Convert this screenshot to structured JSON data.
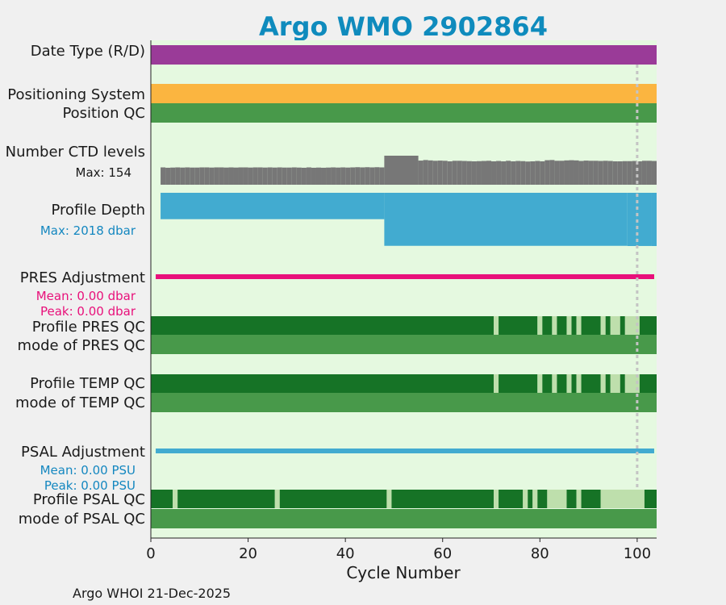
{
  "chart_data": {
    "type": "bar",
    "title": "Argo WMO 2902864",
    "xlabel": "Cycle Number",
    "xlim": [
      0,
      104
    ],
    "xticks": [
      0,
      20,
      40,
      60,
      80,
      100
    ],
    "footer": "Argo WHOI 21-Dec-2025",
    "last_cycle_marker": 100,
    "colors": {
      "plot_bg": "#e5f9e0",
      "page_bg": "#f0f0f0",
      "title": "#0f8bbd",
      "date_type": "#9a3b98",
      "positioning": "#fbb540",
      "qc_good": "#48994a",
      "qc_dark": "#167326",
      "qc_light": "#bedfac",
      "ctd": "#777777",
      "depth": "#42abd0",
      "pres_adj": "#e8107a",
      "psal_adj": "#42abd0",
      "annot_depth": "#1487c0",
      "annot_pres": "#e8107a",
      "annot_psal": "#1487c0"
    },
    "rows": {
      "date_type": {
        "label": "Date Type (R/D)",
        "x": [
          0,
          104
        ]
      },
      "positioning_system": {
        "label": "Positioning System",
        "x": [
          0,
          104
        ]
      },
      "position_qc": {
        "label": "Position QC",
        "x": [
          0,
          104
        ]
      },
      "ctd_levels": {
        "label": "Number CTD levels",
        "max_label": "Max: 154",
        "max": 154,
        "values": [
          [
            2,
            3,
            92
          ],
          [
            3,
            4,
            90
          ],
          [
            4,
            5,
            91
          ],
          [
            5,
            6,
            92
          ],
          [
            6,
            7,
            91
          ],
          [
            7,
            8,
            92
          ],
          [
            8,
            9,
            91
          ],
          [
            9,
            10,
            91
          ],
          [
            10,
            11,
            92
          ],
          [
            11,
            12,
            92
          ],
          [
            12,
            13,
            91
          ],
          [
            13,
            14,
            92
          ],
          [
            14,
            15,
            92
          ],
          [
            15,
            16,
            91
          ],
          [
            16,
            17,
            92
          ],
          [
            17,
            18,
            91
          ],
          [
            18,
            19,
            92
          ],
          [
            19,
            20,
            92
          ],
          [
            20,
            21,
            91
          ],
          [
            21,
            22,
            92
          ],
          [
            22,
            23,
            92
          ],
          [
            23,
            24,
            91
          ],
          [
            24,
            25,
            92
          ],
          [
            25,
            26,
            91
          ],
          [
            26,
            27,
            92
          ],
          [
            27,
            28,
            91
          ],
          [
            28,
            29,
            91
          ],
          [
            29,
            30,
            92
          ],
          [
            30,
            31,
            91
          ],
          [
            31,
            32,
            90
          ],
          [
            32,
            33,
            92
          ],
          [
            33,
            34,
            90
          ],
          [
            34,
            35,
            91
          ],
          [
            35,
            36,
            90
          ],
          [
            36,
            37,
            91
          ],
          [
            37,
            38,
            92
          ],
          [
            38,
            39,
            91
          ],
          [
            39,
            40,
            92
          ],
          [
            40,
            41,
            91
          ],
          [
            41,
            42,
            92
          ],
          [
            42,
            43,
            93
          ],
          [
            43,
            44,
            92
          ],
          [
            44,
            45,
            93
          ],
          [
            45,
            46,
            92
          ],
          [
            46,
            47,
            93
          ],
          [
            47,
            48,
            92
          ],
          [
            48,
            55,
            154
          ],
          [
            55,
            56,
            128
          ],
          [
            56,
            57,
            131
          ],
          [
            57,
            58,
            129
          ],
          [
            58,
            59,
            127
          ],
          [
            59,
            60,
            128
          ],
          [
            60,
            61,
            127
          ],
          [
            61,
            62,
            124
          ],
          [
            62,
            63,
            127
          ],
          [
            63,
            64,
            127
          ],
          [
            64,
            65,
            126
          ],
          [
            65,
            66,
            125
          ],
          [
            66,
            67,
            124
          ],
          [
            67,
            68,
            125
          ],
          [
            68,
            69,
            126
          ],
          [
            69,
            70,
            127
          ],
          [
            70,
            71,
            124
          ],
          [
            71,
            72,
            126
          ],
          [
            72,
            73,
            124
          ],
          [
            73,
            74,
            127
          ],
          [
            74,
            75,
            124
          ],
          [
            75,
            76,
            126
          ],
          [
            76,
            77,
            125
          ],
          [
            77,
            78,
            123
          ],
          [
            78,
            79,
            124
          ],
          [
            79,
            80,
            126
          ],
          [
            80,
            81,
            124
          ],
          [
            81,
            82,
            130
          ],
          [
            82,
            83,
            131
          ],
          [
            83,
            84,
            127
          ],
          [
            84,
            85,
            127
          ],
          [
            85,
            86,
            129
          ],
          [
            86,
            87,
            130
          ],
          [
            87,
            88,
            129
          ],
          [
            88,
            89,
            126
          ],
          [
            89,
            90,
            128
          ],
          [
            90,
            91,
            127
          ],
          [
            91,
            92,
            127
          ],
          [
            92,
            93,
            126
          ],
          [
            93,
            94,
            127
          ],
          [
            94,
            95,
            126
          ],
          [
            95,
            96,
            124
          ],
          [
            96,
            97,
            124
          ],
          [
            97,
            98,
            125
          ],
          [
            98,
            99,
            125
          ],
          [
            99,
            100,
            126
          ],
          [
            100,
            101,
            124
          ],
          [
            101,
            102,
            127
          ],
          [
            102,
            103,
            127
          ],
          [
            103,
            104,
            126
          ]
        ]
      },
      "profile_depth": {
        "label": "Profile Depth",
        "max_label": "Max: 2018 dbar",
        "max": 2018,
        "segments": [
          [
            2,
            48,
            1000
          ],
          [
            48,
            98,
            2010
          ],
          [
            98,
            100,
            2018
          ],
          [
            100,
            103,
            2016
          ],
          [
            103,
            104,
            2018
          ]
        ]
      },
      "pres_adjustment": {
        "label": "PRES Adjustment",
        "mean_label": "Mean: 0.00 dbar",
        "peak_label": "Peak: 0.00 dbar",
        "x": [
          1,
          103.5
        ]
      },
      "profile_pres_qc": {
        "label": "Profile PRES QC",
        "segments": [
          [
            0,
            70.5,
            "A"
          ],
          [
            70.5,
            71.5,
            "B"
          ],
          [
            71.5,
            79.5,
            "A"
          ],
          [
            79.5,
            80.5,
            "B"
          ],
          [
            80.5,
            82.5,
            "A"
          ],
          [
            82.5,
            83.5,
            "B"
          ],
          [
            83.5,
            85.5,
            "A"
          ],
          [
            85.5,
            86.5,
            "B"
          ],
          [
            86.5,
            87.5,
            "A"
          ],
          [
            87.5,
            88.5,
            "B"
          ],
          [
            88.5,
            92.5,
            "A"
          ],
          [
            92.5,
            93.5,
            "B"
          ],
          [
            93.5,
            94.5,
            "A"
          ],
          [
            94.5,
            96.5,
            "B"
          ],
          [
            96.5,
            97.5,
            "A"
          ],
          [
            97.5,
            100.5,
            "B"
          ],
          [
            100.5,
            104,
            "A"
          ]
        ]
      },
      "mode_pres_qc": {
        "label": "mode of PRES QC",
        "x": [
          0,
          104
        ]
      },
      "profile_temp_qc": {
        "label": "Profile TEMP QC",
        "segments": [
          [
            0,
            70.5,
            "A"
          ],
          [
            70.5,
            71.5,
            "B"
          ],
          [
            71.5,
            79.5,
            "A"
          ],
          [
            79.5,
            80.5,
            "B"
          ],
          [
            80.5,
            82.5,
            "A"
          ],
          [
            82.5,
            83.5,
            "B"
          ],
          [
            83.5,
            85.5,
            "A"
          ],
          [
            85.5,
            86.5,
            "B"
          ],
          [
            86.5,
            87.5,
            "A"
          ],
          [
            87.5,
            88.5,
            "B"
          ],
          [
            88.5,
            92.5,
            "A"
          ],
          [
            92.5,
            93.5,
            "B"
          ],
          [
            93.5,
            94.5,
            "A"
          ],
          [
            94.5,
            96.5,
            "B"
          ],
          [
            96.5,
            97.5,
            "A"
          ],
          [
            97.5,
            100.5,
            "B"
          ],
          [
            100.5,
            104,
            "A"
          ]
        ]
      },
      "mode_temp_qc": {
        "label": "mode of TEMP QC",
        "x": [
          0,
          104
        ]
      },
      "psal_adjustment": {
        "label": "PSAL Adjustment",
        "mean_label": "Mean: 0.00 PSU",
        "peak_label": "Peak: 0.00 PSU",
        "x": [
          1,
          103.5
        ]
      },
      "profile_psal_qc": {
        "label": "Profile PSAL QC",
        "segments": [
          [
            0,
            4.5,
            "A"
          ],
          [
            4.5,
            5.5,
            "B"
          ],
          [
            5.5,
            25.5,
            "A"
          ],
          [
            25.5,
            26.5,
            "B"
          ],
          [
            26.5,
            48.5,
            "A"
          ],
          [
            48.5,
            49.5,
            "B"
          ],
          [
            49.5,
            70.5,
            "A"
          ],
          [
            70.5,
            71.5,
            "B"
          ],
          [
            71.5,
            76.5,
            "A"
          ],
          [
            76.5,
            77.5,
            "B"
          ],
          [
            77.5,
            78.5,
            "A"
          ],
          [
            78.5,
            79.5,
            "B"
          ],
          [
            79.5,
            81.5,
            "A"
          ],
          [
            81.5,
            85.5,
            "B"
          ],
          [
            85.5,
            87.5,
            "A"
          ],
          [
            87.5,
            88.5,
            "B"
          ],
          [
            88.5,
            92.5,
            "A"
          ],
          [
            92.5,
            101.5,
            "B"
          ],
          [
            101.5,
            104,
            "A"
          ]
        ]
      },
      "mode_psal_qc": {
        "label": "mode of PSAL QC",
        "x": [
          0,
          104
        ]
      }
    }
  }
}
